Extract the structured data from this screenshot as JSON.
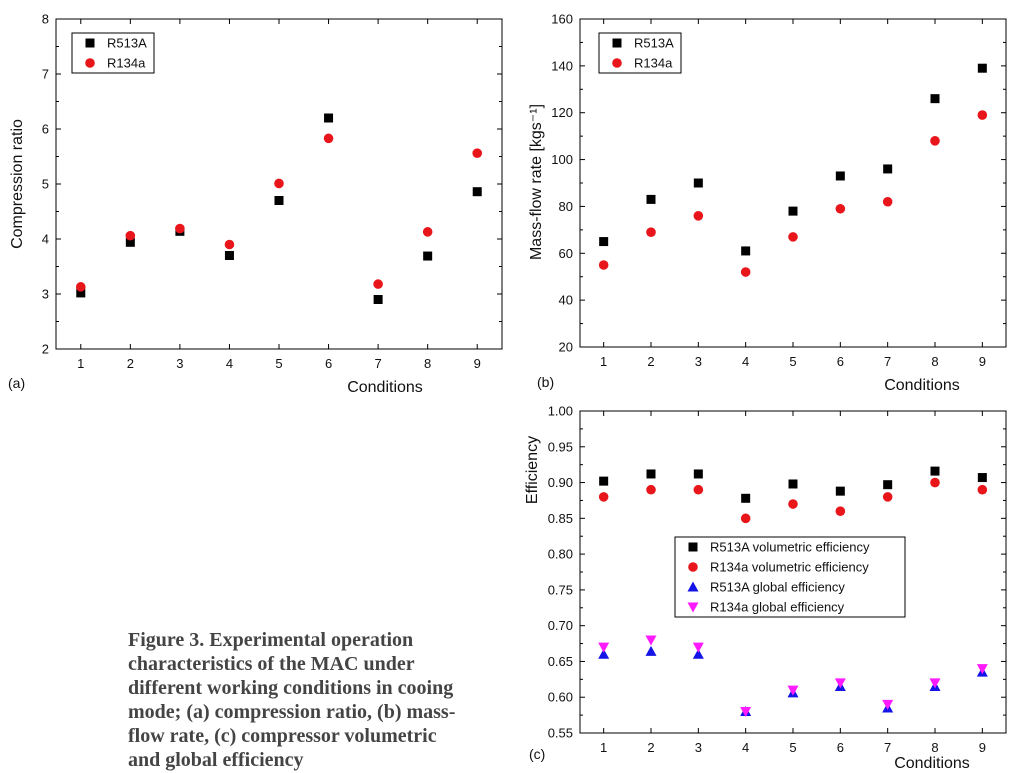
{
  "caption": "Figure 3. Experimental operation characteristics of the MAC under different working conditions in cooing mode; (a) compression ratio, (b) mass-flow rate, (c) compressor volumetric and global efficiency",
  "chart_data": [
    {
      "panel": "(a)",
      "type": "scatter",
      "xlabel": "Conditions",
      "ylabel": "Compression ratio",
      "x": [
        1,
        2,
        3,
        4,
        5,
        6,
        7,
        8,
        9
      ],
      "xlim": [
        0.5,
        9.5
      ],
      "ylim": [
        2,
        8
      ],
      "yticks": [
        "2",
        "3",
        "4",
        "5",
        "6",
        "7",
        "8"
      ],
      "legend": "top-left",
      "series": [
        {
          "name": "R513A",
          "marker": "square",
          "color": "#000000",
          "values": [
            3.02,
            3.94,
            4.14,
            3.7,
            4.7,
            6.2,
            2.9,
            3.69,
            4.86
          ]
        },
        {
          "name": "R134a",
          "marker": "circle",
          "color": "#e8151b",
          "values": [
            3.13,
            4.06,
            4.19,
            3.9,
            5.01,
            5.83,
            3.18,
            4.13,
            5.56
          ]
        }
      ]
    },
    {
      "panel": "(b)",
      "type": "scatter",
      "xlabel": "Conditions",
      "ylabel": "Mass-flow rate [kgs⁻¹]",
      "x": [
        1,
        2,
        3,
        4,
        5,
        6,
        7,
        8,
        9
      ],
      "xlim": [
        0.5,
        9.5
      ],
      "ylim": [
        20,
        160
      ],
      "yticks": [
        "20",
        "40",
        "60",
        "80",
        "100",
        "120",
        "140",
        "160"
      ],
      "legend": "top-left",
      "series": [
        {
          "name": "R513A",
          "marker": "square",
          "color": "#000000",
          "values": [
            65,
            83,
            90,
            61,
            78,
            93,
            96,
            126,
            139
          ]
        },
        {
          "name": "R134a",
          "marker": "circle",
          "color": "#e8151b",
          "values": [
            55,
            69,
            76,
            52,
            67,
            79,
            82,
            108,
            119
          ]
        }
      ]
    },
    {
      "panel": "(c)",
      "type": "scatter",
      "xlabel": "Conditions",
      "ylabel": "Efficiency",
      "x": [
        1,
        2,
        3,
        4,
        5,
        6,
        7,
        8,
        9
      ],
      "xlim": [
        0.5,
        9.5
      ],
      "ylim": [
        0.55,
        1.0
      ],
      "yticks": [
        "0.55",
        "0.60",
        "0.65",
        "0.70",
        "0.75",
        "0.80",
        "0.85",
        "0.90",
        "0.95",
        "1.00"
      ],
      "legend": "center",
      "series": [
        {
          "name": "R513A volumetric efficiency",
          "marker": "square",
          "color": "#000000",
          "values": [
            0.902,
            0.912,
            0.912,
            0.878,
            0.898,
            0.888,
            0.897,
            0.916,
            0.907
          ]
        },
        {
          "name": "R134a volumetric efficiency",
          "marker": "circle",
          "color": "#e8151b",
          "values": [
            0.88,
            0.89,
            0.89,
            0.85,
            0.87,
            0.86,
            0.88,
            0.9,
            0.89
          ]
        },
        {
          "name": "R513A global efficiency",
          "marker": "triangle-up",
          "color": "#1414e6",
          "values": [
            0.66,
            0.664,
            0.66,
            0.58,
            0.606,
            0.615,
            0.585,
            0.615,
            0.635
          ]
        },
        {
          "name": "R134a global efficiency",
          "marker": "triangle-down",
          "color": "#ff1aff",
          "values": [
            0.67,
            0.68,
            0.67,
            0.58,
            0.61,
            0.62,
            0.59,
            0.62,
            0.64
          ]
        }
      ]
    }
  ]
}
